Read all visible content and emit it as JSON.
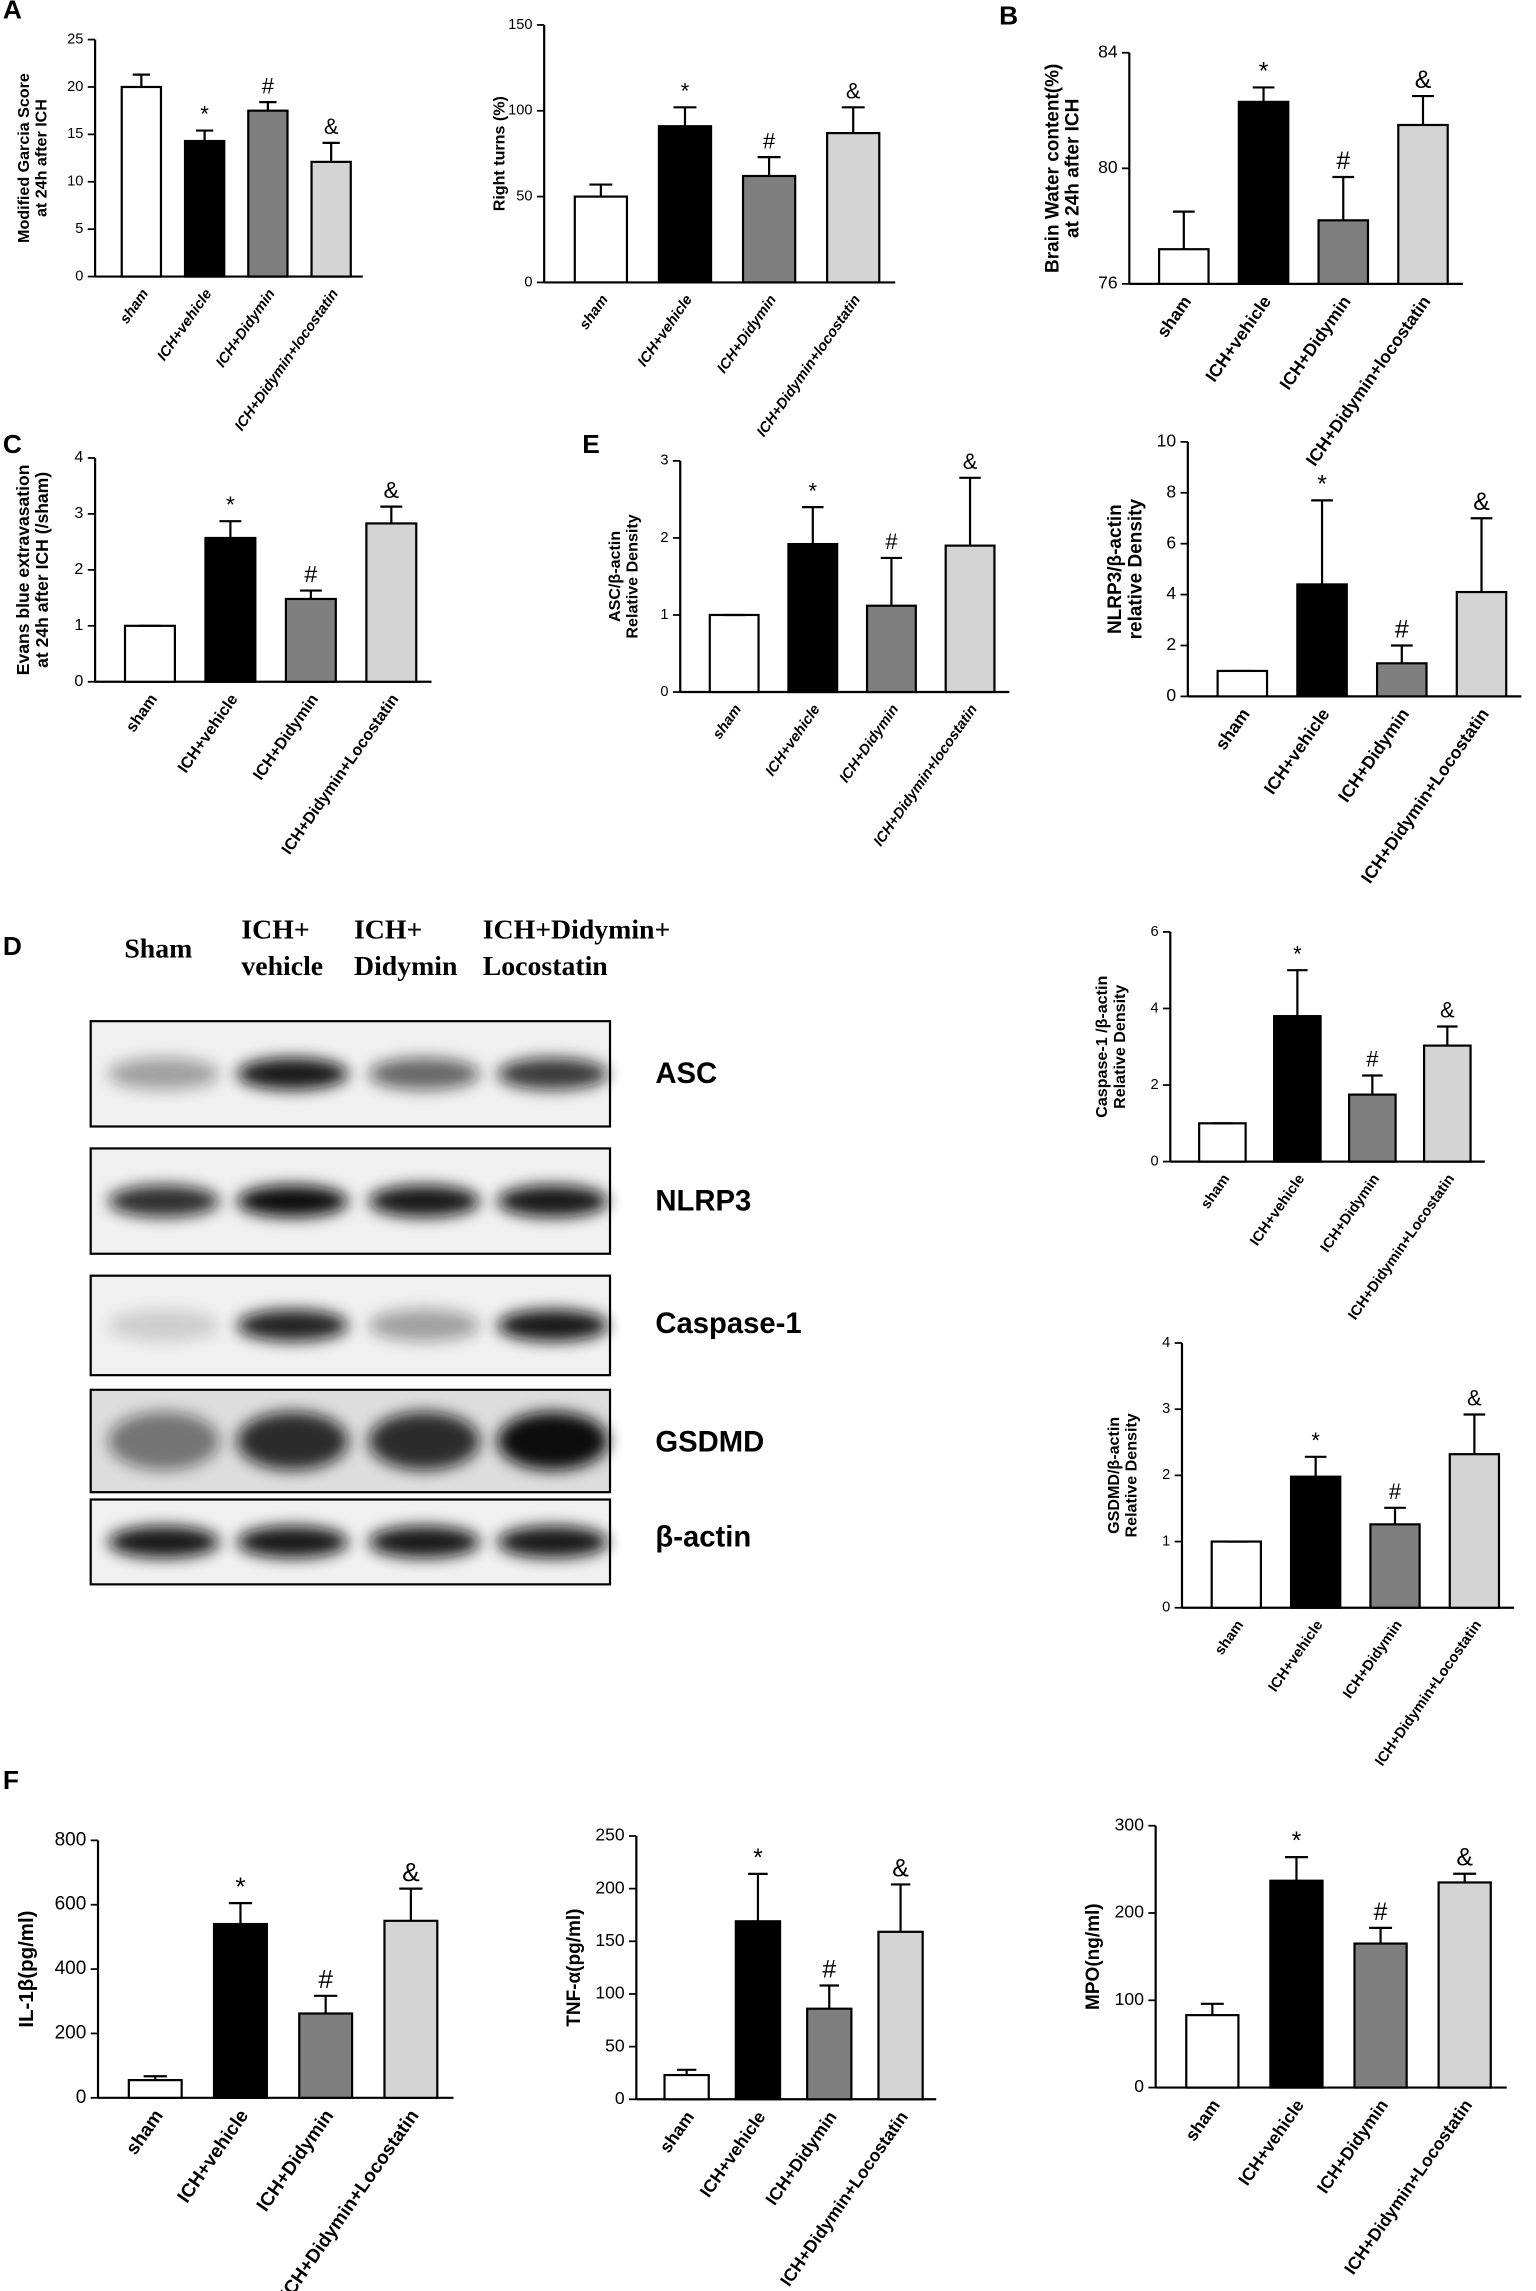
{
  "panels": [
    "A",
    "B",
    "C",
    "E",
    "D",
    "F"
  ],
  "blot": {
    "headers": [
      [
        "Sham"
      ],
      [
        "ICH+",
        "vehicle"
      ],
      [
        "ICH+",
        "Didymin"
      ],
      [
        "ICH+Didymin+",
        "Locostatin"
      ]
    ],
    "bands": [
      "ASC",
      "NLRP3",
      "Caspase-1",
      "GSDMD",
      "β-actin"
    ]
  },
  "chart_data": [
    {
      "type": "bar",
      "ylabel": [
        "Modified Garcia Score",
        "at 24h after ICH"
      ],
      "categories": [
        "sham",
        "ICH+vehicle",
        "ICH+Didymin",
        "ICH+Didymin+locostatin"
      ],
      "values": [
        20,
        14.3,
        17.5,
        12.1
      ],
      "errors": [
        1.3,
        1.1,
        0.9,
        2
      ],
      "markers": [
        null,
        "*",
        "#",
        "&"
      ],
      "colors": [
        "#ffffff",
        "#000000",
        "#7f7f7f",
        "#d4d4d4"
      ],
      "ylim": [
        0,
        25
      ],
      "yticks": [
        0,
        5,
        10,
        15,
        20,
        25
      ]
    },
    {
      "type": "bar",
      "ylabel": [
        "Right turns (%)"
      ],
      "categories": [
        "sham",
        "ICH+vehicle",
        "ICH+Didymin",
        "ICH+Didymin+locostatin"
      ],
      "values": [
        50,
        91,
        62,
        87
      ],
      "errors": [
        7,
        11,
        11,
        15
      ],
      "markers": [
        null,
        "*",
        "#",
        "&"
      ],
      "colors": [
        "#ffffff",
        "#000000",
        "#7f7f7f",
        "#d4d4d4"
      ],
      "ylim": [
        0,
        150
      ],
      "yticks": [
        0,
        50,
        100,
        150
      ]
    },
    {
      "type": "bar",
      "ylabel": [
        "Brain Water content(%)",
        "at 24h after ICH"
      ],
      "categories": [
        "sham",
        "ICH+vehicle",
        "ICH+Didymin",
        "ICH+Didymin+locostatin"
      ],
      "values": [
        77.2,
        82.3,
        78.2,
        81.5
      ],
      "errors": [
        1.3,
        0.5,
        1.5,
        1
      ],
      "markers": [
        null,
        "*",
        "#",
        "&"
      ],
      "colors": [
        "#ffffff",
        "#000000",
        "#7f7f7f",
        "#d4d4d4"
      ],
      "ylim": [
        76,
        84
      ],
      "yticks": [
        76,
        80,
        84
      ]
    },
    {
      "type": "bar",
      "ylabel": [
        "Evans blue extravasation",
        "at 24h after ICH (/sham)"
      ],
      "categories": [
        "sham",
        "ICH+vehicle",
        "ICH+Didymin",
        "ICH+Didymin+Locostatin"
      ],
      "values": [
        1,
        2.57,
        1.48,
        2.83
      ],
      "errors": [
        0,
        0.3,
        0.15,
        0.3
      ],
      "markers": [
        null,
        "*",
        "#",
        "&"
      ],
      "colors": [
        "#ffffff",
        "#000000",
        "#7f7f7f",
        "#d4d4d4"
      ],
      "ylim": [
        0,
        4
      ],
      "yticks": [
        0,
        1,
        2,
        3,
        4
      ]
    },
    {
      "type": "bar",
      "ylabel": [
        "ASC/β-actin",
        "Relative Density"
      ],
      "categories": [
        "sham",
        "ICH+vehicle",
        "ICH+Didymin",
        "ICH+Didymin+locostatin"
      ],
      "values": [
        1,
        1.92,
        1.12,
        1.9
      ],
      "errors": [
        0,
        0.48,
        0.62,
        0.88
      ],
      "markers": [
        null,
        "*",
        "#",
        "&"
      ],
      "colors": [
        "#ffffff",
        "#000000",
        "#7f7f7f",
        "#d4d4d4"
      ],
      "ylim": [
        0,
        3
      ],
      "yticks": [
        0,
        1,
        2,
        3
      ]
    },
    {
      "type": "bar",
      "ylabel": [
        "NLRP3/β-actin",
        "relative Density"
      ],
      "categories": [
        "sham",
        "ICH+vehicle",
        "ICH+Didymin",
        "ICH+Didymin+Locostatin"
      ],
      "values": [
        1,
        4.4,
        1.3,
        4.1
      ],
      "errors": [
        0,
        3.3,
        0.7,
        2.9
      ],
      "markers": [
        null,
        "*",
        "#",
        "&"
      ],
      "colors": [
        "#ffffff",
        "#000000",
        "#7f7f7f",
        "#d4d4d4"
      ],
      "ylim": [
        0,
        10
      ],
      "yticks": [
        0,
        2,
        4,
        6,
        8,
        10
      ]
    },
    {
      "type": "bar",
      "ylabel": [
        "Caspase-1 /β-actin",
        "Relative Density"
      ],
      "categories": [
        "sham",
        "ICH+vehicle",
        "ICH+Didymin",
        "ICH+Didymin+Locostatin"
      ],
      "values": [
        1,
        3.8,
        1.75,
        3.03
      ],
      "errors": [
        0,
        1.2,
        0.5,
        0.5
      ],
      "markers": [
        null,
        "*",
        "#",
        "&"
      ],
      "colors": [
        "#ffffff",
        "#000000",
        "#7f7f7f",
        "#d4d4d4"
      ],
      "ylim": [
        0,
        6
      ],
      "yticks": [
        0,
        2,
        4,
        6
      ]
    },
    {
      "type": "bar",
      "ylabel": [
        "GSDMD/β-actin",
        "Relative Density"
      ],
      "categories": [
        "sham",
        "ICH+vehicle",
        "ICH+Didymin",
        "ICH+Didymin+Locostatin"
      ],
      "values": [
        1,
        1.98,
        1.26,
        2.32
      ],
      "errors": [
        0,
        0.3,
        0.25,
        0.6
      ],
      "markers": [
        null,
        "*",
        "#",
        "&"
      ],
      "colors": [
        "#ffffff",
        "#000000",
        "#7f7f7f",
        "#d4d4d4"
      ],
      "ylim": [
        0,
        4
      ],
      "yticks": [
        0,
        1,
        2,
        3,
        4
      ]
    },
    {
      "type": "bar",
      "ylabel": [
        "IL-1β(pg/ml)"
      ],
      "categories": [
        "sham",
        "ICH+vehicle",
        "ICH+Didymin",
        "ICH+Didymin+Locostatin"
      ],
      "values": [
        55,
        540,
        262,
        550
      ],
      "errors": [
        12,
        65,
        55,
        100
      ],
      "markers": [
        null,
        "*",
        "#",
        "&"
      ],
      "colors": [
        "#ffffff",
        "#000000",
        "#7f7f7f",
        "#d4d4d4"
      ],
      "ylim": [
        0,
        800
      ],
      "yticks": [
        0,
        200,
        400,
        600,
        800
      ]
    },
    {
      "type": "bar",
      "ylabel": [
        "TNF-α(pg/ml)"
      ],
      "categories": [
        "sham",
        "ICH+vehicle",
        "ICH+Didymin",
        "ICH+Didymin+Locostatin"
      ],
      "values": [
        23,
        169,
        86,
        159
      ],
      "errors": [
        5,
        45,
        22,
        45
      ],
      "markers": [
        null,
        "*",
        "#",
        "&"
      ],
      "colors": [
        "#ffffff",
        "#000000",
        "#7f7f7f",
        "#d4d4d4"
      ],
      "ylim": [
        0,
        250
      ],
      "yticks": [
        0,
        50,
        100,
        150,
        200,
        250
      ]
    },
    {
      "type": "bar",
      "ylabel": [
        "MPO(ng/ml)"
      ],
      "categories": [
        "sham",
        "ICH+vehicle",
        "ICH+Didymin",
        "ICH+Didymin+Locostatin"
      ],
      "values": [
        83,
        237,
        165,
        235
      ],
      "errors": [
        13,
        27,
        18,
        10
      ],
      "markers": [
        null,
        "*",
        "#",
        "&"
      ],
      "colors": [
        "#ffffff",
        "#000000",
        "#7f7f7f",
        "#d4d4d4"
      ],
      "ylim": [
        0,
        300
      ],
      "yticks": [
        0,
        100,
        200,
        300
      ]
    }
  ]
}
